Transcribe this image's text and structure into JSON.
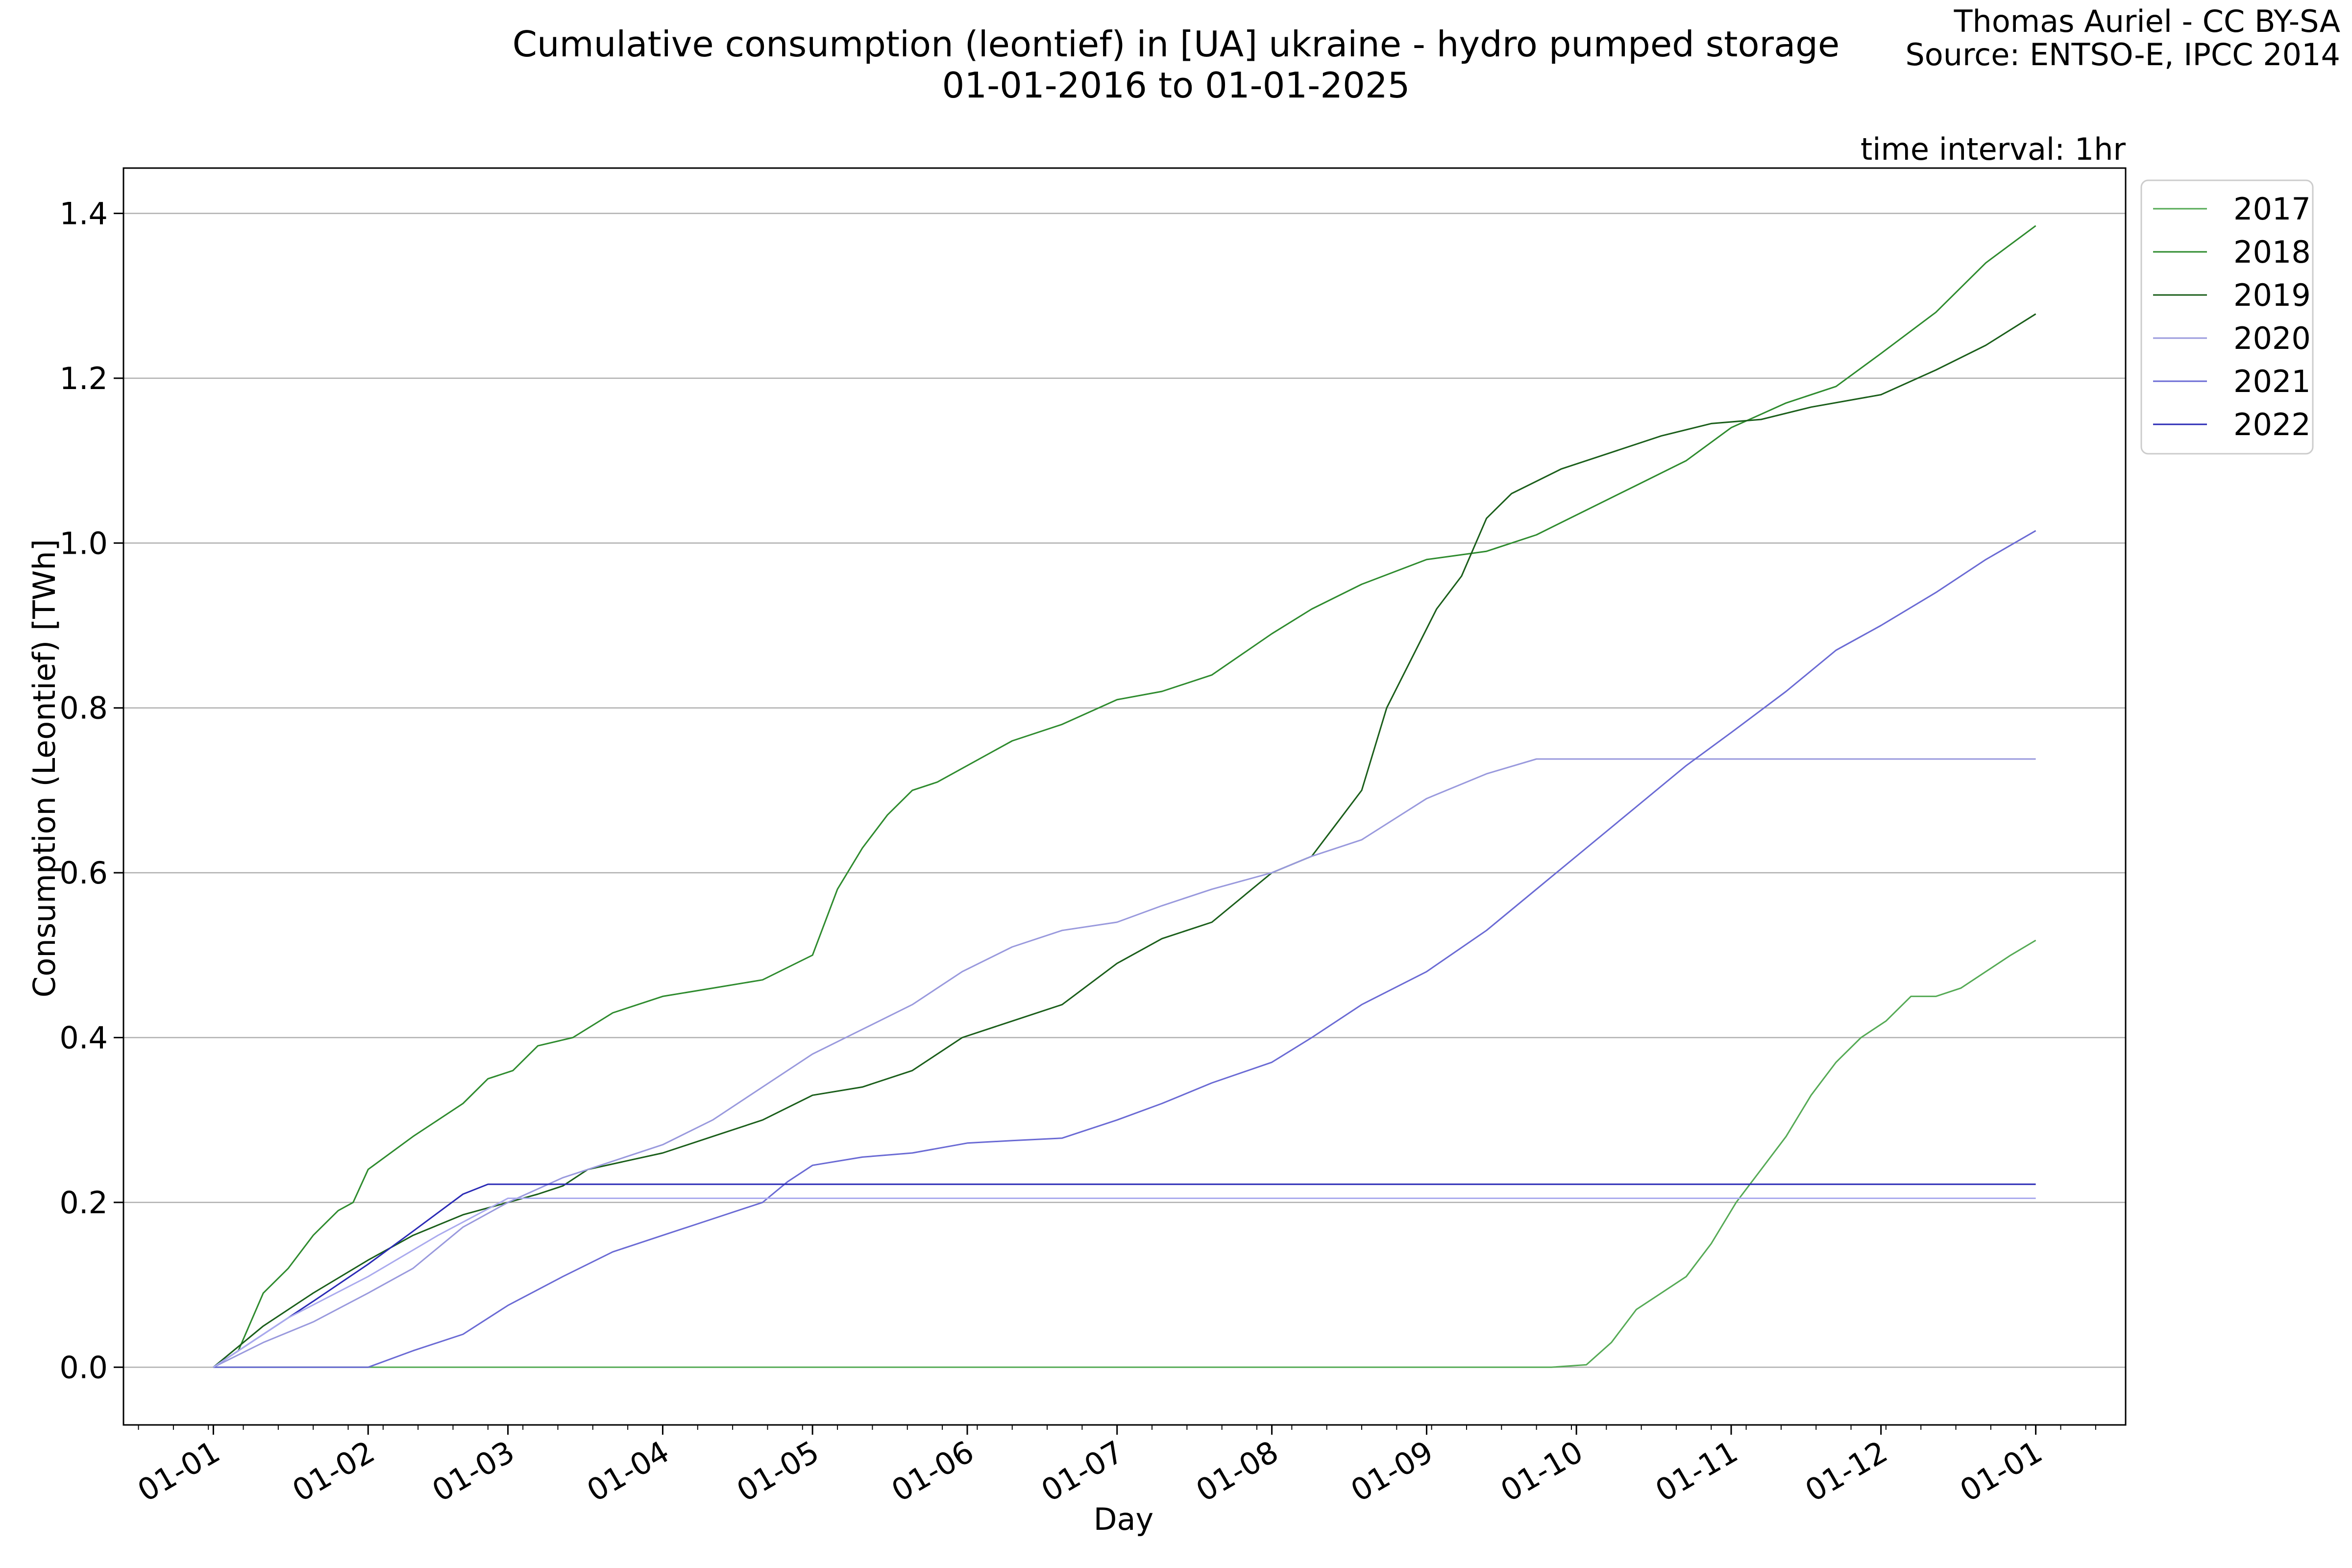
{
  "header": {
    "title_line1": "Cumulative consumption (leontief) in [UA] ukraine - hydro pumped storage",
    "title_line2": "01-01-2016 to 01-01-2025",
    "credit_line1": "Thomas Auriel - CC BY-SA",
    "credit_line2": "Source: ENTSO-E, IPCC 2014"
  },
  "chart_data": {
    "type": "line",
    "annotation": "time interval: 1hr",
    "xlabel": "Day",
    "ylabel": "Consumption (Leontief) [TWh]",
    "x_ticks": [
      "01-01",
      "01-02",
      "01-03",
      "01-04",
      "01-05",
      "01-06",
      "01-07",
      "01-08",
      "01-09",
      "01-10",
      "01-11",
      "01-12",
      "01-01"
    ],
    "x_tick_days": [
      0,
      31,
      59,
      90,
      120,
      151,
      181,
      212,
      243,
      273,
      304,
      334,
      365
    ],
    "xlim": [
      -18,
      383
    ],
    "y_ticks": [
      "0.0",
      "0.2",
      "0.4",
      "0.6",
      "0.8",
      "1.0",
      "1.2",
      "1.4"
    ],
    "ylim": [
      -0.07,
      1.455
    ],
    "grid": "horizontal",
    "legend_position": "outside-top-right",
    "series": [
      {
        "name": "2017",
        "color": "#55aa55",
        "width": 3,
        "points": [
          [
            0,
            0
          ],
          [
            250,
            0
          ],
          [
            268,
            0
          ],
          [
            275,
            0.003
          ],
          [
            280,
            0.03
          ],
          [
            285,
            0.07
          ],
          [
            290,
            0.09
          ],
          [
            295,
            0.11
          ],
          [
            300,
            0.15
          ],
          [
            305,
            0.2
          ],
          [
            310,
            0.24
          ],
          [
            315,
            0.28
          ],
          [
            320,
            0.33
          ],
          [
            325,
            0.37
          ],
          [
            330,
            0.4
          ],
          [
            335,
            0.42
          ],
          [
            340,
            0.45
          ],
          [
            345,
            0.45
          ],
          [
            350,
            0.46
          ],
          [
            355,
            0.48
          ],
          [
            360,
            0.5
          ],
          [
            365,
            0.518
          ]
        ]
      },
      {
        "name": "2018",
        "color": "#2e8b2e",
        "width": 3,
        "points": [
          [
            0,
            0
          ],
          [
            5,
            0.02
          ],
          [
            10,
            0.09
          ],
          [
            15,
            0.12
          ],
          [
            20,
            0.16
          ],
          [
            25,
            0.19
          ],
          [
            28,
            0.2
          ],
          [
            31,
            0.24
          ],
          [
            40,
            0.28
          ],
          [
            50,
            0.32
          ],
          [
            55,
            0.35
          ],
          [
            60,
            0.36
          ],
          [
            65,
            0.39
          ],
          [
            72,
            0.4
          ],
          [
            80,
            0.43
          ],
          [
            90,
            0.45
          ],
          [
            100,
            0.46
          ],
          [
            110,
            0.47
          ],
          [
            120,
            0.5
          ],
          [
            125,
            0.58
          ],
          [
            130,
            0.63
          ],
          [
            135,
            0.67
          ],
          [
            140,
            0.7
          ],
          [
            145,
            0.71
          ],
          [
            151,
            0.73
          ],
          [
            160,
            0.76
          ],
          [
            170,
            0.78
          ],
          [
            181,
            0.81
          ],
          [
            190,
            0.82
          ],
          [
            200,
            0.84
          ],
          [
            212,
            0.89
          ],
          [
            220,
            0.92
          ],
          [
            230,
            0.95
          ],
          [
            243,
            0.98
          ],
          [
            255,
            0.99
          ],
          [
            265,
            1.01
          ],
          [
            275,
            1.04
          ],
          [
            285,
            1.07
          ],
          [
            295,
            1.1
          ],
          [
            304,
            1.14
          ],
          [
            315,
            1.17
          ],
          [
            325,
            1.19
          ],
          [
            334,
            1.23
          ],
          [
            345,
            1.28
          ],
          [
            355,
            1.34
          ],
          [
            365,
            1.385
          ]
        ]
      },
      {
        "name": "2019",
        "color": "#1a5e1a",
        "width": 3,
        "points": [
          [
            0,
            0
          ],
          [
            10,
            0.05
          ],
          [
            20,
            0.09
          ],
          [
            31,
            0.13
          ],
          [
            40,
            0.16
          ],
          [
            50,
            0.185
          ],
          [
            59,
            0.2
          ],
          [
            65,
            0.21
          ],
          [
            70,
            0.22
          ],
          [
            75,
            0.24
          ],
          [
            90,
            0.26
          ],
          [
            100,
            0.28
          ],
          [
            110,
            0.3
          ],
          [
            120,
            0.33
          ],
          [
            130,
            0.34
          ],
          [
            140,
            0.36
          ],
          [
            150,
            0.4
          ],
          [
            160,
            0.42
          ],
          [
            170,
            0.44
          ],
          [
            181,
            0.49
          ],
          [
            190,
            0.52
          ],
          [
            200,
            0.54
          ],
          [
            212,
            0.6
          ],
          [
            220,
            0.62
          ],
          [
            225,
            0.66
          ],
          [
            230,
            0.7
          ],
          [
            235,
            0.8
          ],
          [
            240,
            0.86
          ],
          [
            245,
            0.92
          ],
          [
            250,
            0.96
          ],
          [
            255,
            1.03
          ],
          [
            260,
            1.06
          ],
          [
            270,
            1.09
          ],
          [
            280,
            1.11
          ],
          [
            290,
            1.13
          ],
          [
            300,
            1.145
          ],
          [
            310,
            1.15
          ],
          [
            320,
            1.165
          ],
          [
            334,
            1.18
          ],
          [
            345,
            1.21
          ],
          [
            355,
            1.24
          ],
          [
            365,
            1.278
          ]
        ]
      },
      {
        "name": "2020",
        "color": "#9999dd",
        "width": 3,
        "points": [
          [
            0,
            0
          ],
          [
            10,
            0.03
          ],
          [
            20,
            0.055
          ],
          [
            31,
            0.09
          ],
          [
            40,
            0.12
          ],
          [
            50,
            0.17
          ],
          [
            59,
            0.2
          ],
          [
            70,
            0.23
          ],
          [
            80,
            0.25
          ],
          [
            90,
            0.27
          ],
          [
            100,
            0.3
          ],
          [
            110,
            0.34
          ],
          [
            120,
            0.38
          ],
          [
            130,
            0.41
          ],
          [
            140,
            0.44
          ],
          [
            150,
            0.48
          ],
          [
            160,
            0.51
          ],
          [
            170,
            0.53
          ],
          [
            181,
            0.54
          ],
          [
            190,
            0.56
          ],
          [
            200,
            0.58
          ],
          [
            212,
            0.6
          ],
          [
            220,
            0.62
          ],
          [
            230,
            0.64
          ],
          [
            243,
            0.69
          ],
          [
            255,
            0.72
          ],
          [
            265,
            0.738
          ],
          [
            365,
            0.738
          ]
        ]
      },
      {
        "name": "2021",
        "color": "#6a6ad4",
        "width": 3,
        "points": [
          [
            0,
            0
          ],
          [
            31,
            0
          ],
          [
            40,
            0.02
          ],
          [
            50,
            0.04
          ],
          [
            59,
            0.075
          ],
          [
            70,
            0.11
          ],
          [
            80,
            0.14
          ],
          [
            90,
            0.16
          ],
          [
            100,
            0.18
          ],
          [
            110,
            0.2
          ],
          [
            115,
            0.225
          ],
          [
            120,
            0.245
          ],
          [
            130,
            0.255
          ],
          [
            140,
            0.26
          ],
          [
            151,
            0.272
          ],
          [
            160,
            0.275
          ],
          [
            170,
            0.278
          ],
          [
            181,
            0.3
          ],
          [
            190,
            0.32
          ],
          [
            200,
            0.345
          ],
          [
            212,
            0.37
          ],
          [
            220,
            0.4
          ],
          [
            230,
            0.44
          ],
          [
            243,
            0.48
          ],
          [
            255,
            0.53
          ],
          [
            265,
            0.58
          ],
          [
            275,
            0.63
          ],
          [
            285,
            0.68
          ],
          [
            295,
            0.73
          ],
          [
            304,
            0.77
          ],
          [
            315,
            0.82
          ],
          [
            325,
            0.87
          ],
          [
            334,
            0.9
          ],
          [
            345,
            0.94
          ],
          [
            355,
            0.98
          ],
          [
            365,
            1.015
          ]
        ]
      },
      {
        "name": "2022",
        "color": "#2a2ab5",
        "width": 3,
        "points": [
          [
            0,
            0
          ],
          [
            10,
            0.04
          ],
          [
            20,
            0.08
          ],
          [
            31,
            0.125
          ],
          [
            40,
            0.165
          ],
          [
            50,
            0.21
          ],
          [
            55,
            0.222
          ],
          [
            365,
            0.222
          ]
        ]
      },
      {
        "name": "",
        "color": "#aaaaee",
        "width": 3,
        "show_in_legend": false,
        "points": [
          [
            0,
            0
          ],
          [
            15,
            0.06
          ],
          [
            31,
            0.11
          ],
          [
            45,
            0.16
          ],
          [
            59,
            0.205
          ],
          [
            365,
            0.205
          ]
        ]
      }
    ]
  }
}
